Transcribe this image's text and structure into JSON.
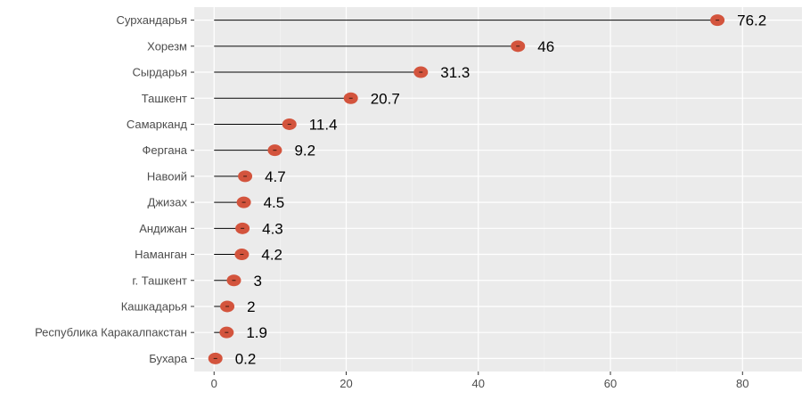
{
  "chart_data": {
    "type": "lollipop",
    "orientation": "horizontal",
    "title": "",
    "xlabel": "",
    "ylabel": "",
    "categories": [
      "Сурхандарья",
      "Хорезм",
      "Сырдарья",
      "Ташкент",
      "Самарканд",
      "Фергана",
      "Навоий",
      "Джизах",
      "Андижан",
      "Наманган",
      "г. Ташкент",
      "Кашкадарья",
      "Республика Каракалпакстан",
      "Бухара"
    ],
    "values": [
      76.2,
      46,
      31.3,
      20.7,
      11.4,
      9.2,
      4.7,
      4.5,
      4.3,
      4.2,
      3,
      2,
      1.9,
      0.2
    ],
    "value_labels": [
      "76.2",
      "46",
      "31.3",
      "20.7",
      "11.4",
      "9.2",
      "4.7",
      "4.5",
      "4.3",
      "4.2",
      "3",
      "2",
      "1.9",
      "0.2"
    ],
    "xlim": [
      -3,
      89
    ],
    "x_ticks": [
      0,
      20,
      40,
      60,
      80
    ],
    "grid": true,
    "legend": "none",
    "colors": {
      "panel_background": "#ebebeb",
      "grid_major": "#ffffff",
      "grid_minor": "#f5f5f5",
      "point": "#d3543d",
      "segment": "#000000"
    }
  }
}
